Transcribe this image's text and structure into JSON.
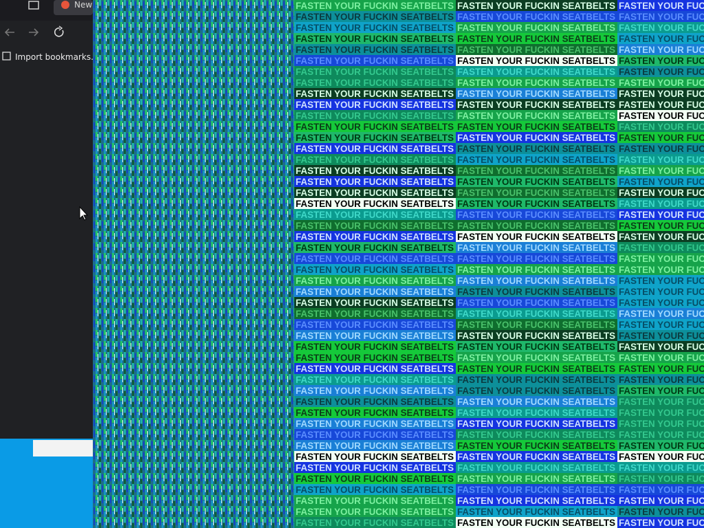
{
  "browser": {
    "tab_title": "New",
    "bookmark_item": "Import bookmarks..."
  },
  "overlay": {
    "banner_text": "FASTEN YOUR FUCKIN SEATBELTS"
  }
}
